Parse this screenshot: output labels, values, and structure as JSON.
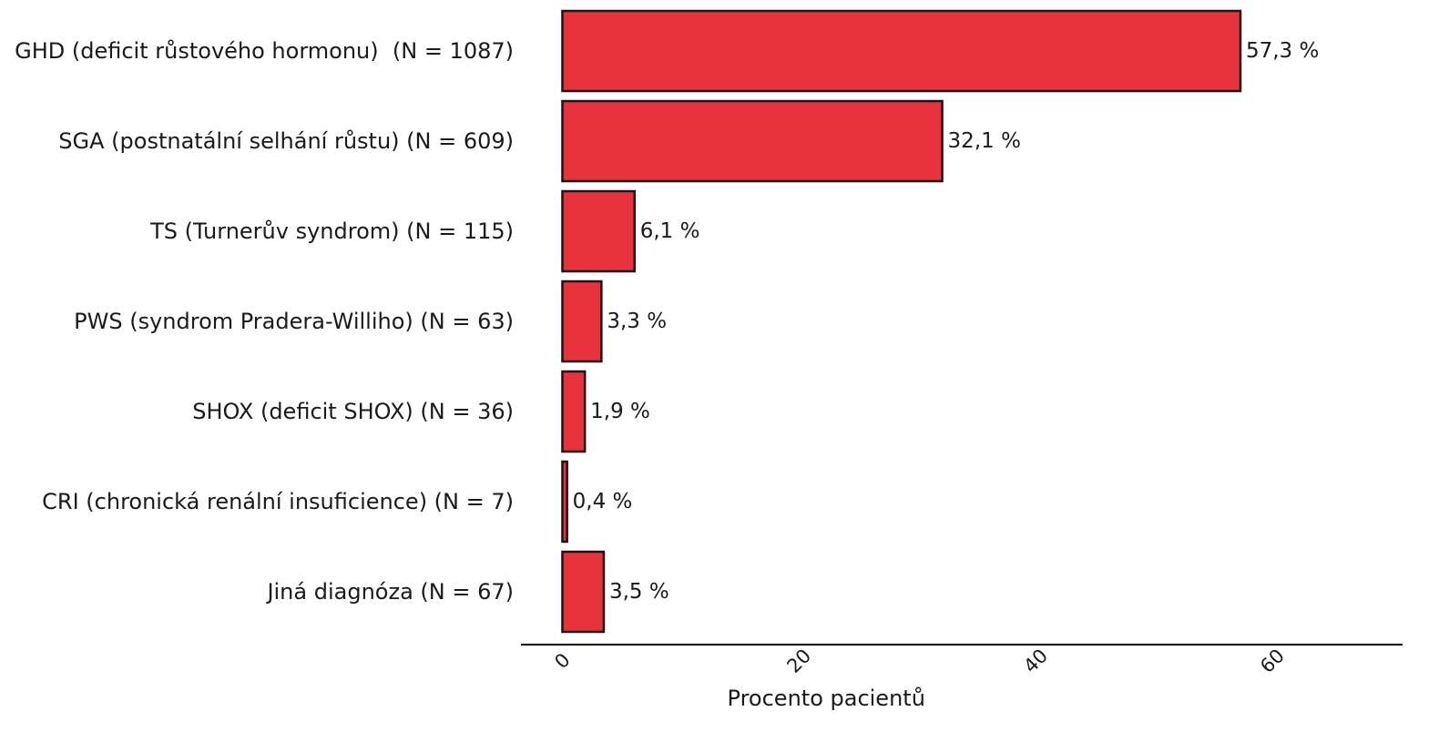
{
  "chart_data": {
    "type": "bar",
    "orientation": "horizontal",
    "categories": [
      "GHD (deficit růstového hormonu)  (N = 1087)",
      "SGA (postnatální selhání růstu) (N = 609)",
      "TS (Turnerův syndrom) (N = 115)",
      "PWS (syndrom Pradera-Williho) (N = 63)",
      "SHOX (deficit SHOX) (N = 36)",
      "CRI (chronická renální insuficience) (N = 7)",
      "Jiná diagnóza (N = 67)"
    ],
    "values": [
      57.3,
      32.1,
      6.1,
      3.3,
      1.9,
      0.4,
      3.5
    ],
    "value_labels": [
      "57,3 %",
      "32,1 %",
      "6,1 %",
      "3,3 %",
      "1,9 %",
      "0,4 %",
      "3,5 %"
    ],
    "xlabel": "Procento pacientů",
    "ylabel": "",
    "title": "",
    "xlim": [
      -3.5,
      71
    ],
    "xticks": [
      0,
      20,
      40,
      60
    ],
    "tick_labels": [
      "0",
      "20",
      "40",
      "60"
    ],
    "grid": false,
    "legend": "none",
    "bar_color": "#e8323e",
    "bar_edge_color": "#1c1414"
  }
}
